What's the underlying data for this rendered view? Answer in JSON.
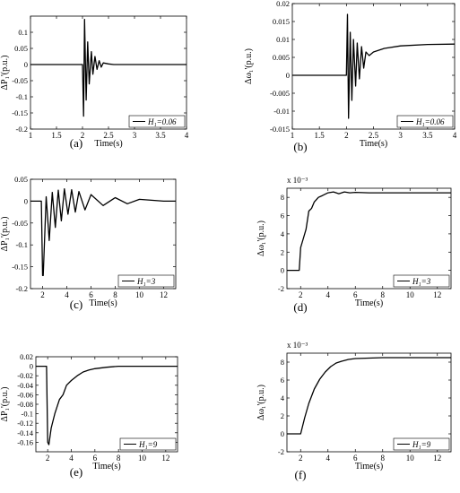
{
  "chart_data": [
    {
      "id": "a",
      "type": "line",
      "caption": "(a)",
      "xlabel": "Time(s)",
      "ylabel": "ΔP₁'(p.u.)",
      "xlim": [
        1,
        4
      ],
      "ylim": [
        -0.2,
        0.15
      ],
      "xticks": [
        "1",
        "1.5",
        "2",
        "2.5",
        "3",
        "3.5",
        "4"
      ],
      "xtick_values": [
        1,
        1.5,
        2,
        2.5,
        3,
        3.5,
        4
      ],
      "yticks": [
        "-0.2",
        "-0.15",
        "-0.1",
        "-0.05",
        "0",
        "0.05",
        "0.1"
      ],
      "ytick_values": [
        -0.2,
        -0.15,
        -0.1,
        -0.05,
        0,
        0.05,
        0.1
      ],
      "legend": "H₁=0.06",
      "legend_position": "bottom-right",
      "series": [
        {
          "x": [
            1,
            1.5,
            2.0,
            2.02,
            2.04,
            2.07,
            2.1,
            2.13,
            2.17,
            2.2,
            2.24,
            2.28,
            2.32,
            2.36,
            2.4,
            2.5,
            2.6,
            3,
            3.5,
            4
          ],
          "y": [
            0,
            0,
            0,
            -0.16,
            0.14,
            -0.11,
            0.07,
            -0.06,
            0.04,
            -0.03,
            0.025,
            -0.015,
            0.012,
            -0.008,
            0.005,
            0.002,
            0,
            0,
            0,
            0
          ]
        }
      ]
    },
    {
      "id": "b",
      "type": "line",
      "caption": "(b)",
      "xlabel": "Time(s)",
      "ylabel": "Δω₁'(p.u.)",
      "xlim": [
        1,
        4
      ],
      "ylim": [
        -0.015,
        0.02
      ],
      "xticks": [
        "1",
        "1.5",
        "2",
        "2.5",
        "3",
        "3.5",
        "4"
      ],
      "xtick_values": [
        1,
        1.5,
        2,
        2.5,
        3,
        3.5,
        4
      ],
      "yticks": [
        "-0.015",
        "-0.01",
        "-0.005",
        "0",
        "0.005",
        "0.01",
        "0.015",
        "0.02"
      ],
      "ytick_values": [
        -0.015,
        -0.01,
        -0.005,
        0,
        0.005,
        0.01,
        0.015,
        0.02
      ],
      "legend": "H₁=0.06",
      "legend_position": "bottom-right",
      "series": [
        {
          "x": [
            1,
            1.5,
            2.0,
            2.02,
            2.04,
            2.07,
            2.1,
            2.13,
            2.17,
            2.2,
            2.24,
            2.28,
            2.32,
            2.36,
            2.42,
            2.5,
            2.7,
            3,
            3.5,
            4
          ],
          "y": [
            0,
            0,
            0,
            0.017,
            -0.012,
            0.012,
            -0.007,
            0.01,
            -0.003,
            0.009,
            -0.001,
            0.008,
            0.002,
            0.0065,
            0.0055,
            0.0065,
            0.0075,
            0.0082,
            0.0086,
            0.0087
          ]
        }
      ]
    },
    {
      "id": "c",
      "type": "line",
      "caption": "(c)",
      "xlabel": "Time(s)",
      "ylabel": "ΔP₁'(p.u.)",
      "xlim": [
        1,
        13
      ],
      "ylim": [
        -0.2,
        0.05
      ],
      "xticks": [
        "2",
        "4",
        "6",
        "8",
        "10",
        "12"
      ],
      "xtick_values": [
        2,
        4,
        6,
        8,
        10,
        12
      ],
      "yticks": [
        "-0.2",
        "-0.15",
        "-0.1",
        "-0.05",
        "0",
        "0.05"
      ],
      "ytick_values": [
        -0.2,
        -0.15,
        -0.1,
        -0.05,
        0,
        0.05
      ],
      "legend": "H₁=3",
      "legend_position": "bottom-right",
      "series": [
        {
          "x": [
            1,
            1.9,
            2.0,
            2.05,
            2.3,
            2.55,
            2.8,
            3.05,
            3.3,
            3.55,
            3.8,
            4.1,
            4.4,
            4.7,
            5.0,
            5.5,
            6,
            7,
            8,
            9,
            10,
            11,
            12,
            13
          ],
          "y": [
            0,
            0,
            -0.17,
            -0.17,
            0.01,
            -0.09,
            0.02,
            -0.06,
            0.025,
            -0.045,
            0.028,
            -0.03,
            0.026,
            -0.025,
            0.022,
            -0.02,
            0.015,
            -0.01,
            0.008,
            -0.006,
            0.004,
            0.002,
            0,
            0
          ]
        }
      ]
    },
    {
      "id": "d",
      "type": "line",
      "caption": "(d)",
      "xlabel": "Time(s)",
      "ylabel": "Δω₁'(p.u.)",
      "exponent": "x 10⁻³",
      "xlim": [
        1,
        13
      ],
      "ylim": [
        -2,
        9
      ],
      "xticks": [
        "2",
        "4",
        "6",
        "8",
        "10",
        "12"
      ],
      "xtick_values": [
        2,
        4,
        6,
        8,
        10,
        12
      ],
      "yticks": [
        "-2",
        "0",
        "2",
        "4",
        "6",
        "8"
      ],
      "ytick_values": [
        -2,
        0,
        2,
        4,
        6,
        8
      ],
      "legend": "H₁=3",
      "legend_position": "bottom-right",
      "series": [
        {
          "x": [
            1,
            1.9,
            2.0,
            2.2,
            2.4,
            2.6,
            2.8,
            3.0,
            3.3,
            3.6,
            4.0,
            4.4,
            4.8,
            5.2,
            5.6,
            6.0,
            7,
            8,
            9,
            10,
            11,
            12,
            13
          ],
          "y": [
            0,
            0,
            2.5,
            3.5,
            4.5,
            6.5,
            6.8,
            7.5,
            8.0,
            8.2,
            8.5,
            8.6,
            8.4,
            8.6,
            8.5,
            8.55,
            8.5,
            8.5,
            8.5,
            8.5,
            8.5,
            8.5,
            8.5
          ]
        }
      ]
    },
    {
      "id": "e",
      "type": "line",
      "caption": "(e)",
      "xlabel": "Time(s)",
      "ylabel": "ΔP₁'(p.u.)",
      "xlim": [
        1,
        13
      ],
      "ylim": [
        -0.18,
        0.02
      ],
      "xticks": [
        "2",
        "4",
        "6",
        "8",
        "10",
        "12"
      ],
      "xtick_values": [
        2,
        4,
        6,
        8,
        10,
        12
      ],
      "yticks": [
        "-0.16",
        "-0.14",
        "-0.12",
        "-0.1",
        "-0.08",
        "-0.06",
        "-0.04",
        "-0.02",
        "0",
        "0.02"
      ],
      "ytick_values": [
        -0.16,
        -0.14,
        -0.12,
        -0.1,
        -0.08,
        -0.06,
        -0.04,
        -0.02,
        0,
        0.02
      ],
      "legend": "H₁=9",
      "legend_position": "bottom-right",
      "series": [
        {
          "x": [
            1,
            1.9,
            2.0,
            2.1,
            2.3,
            2.6,
            3.0,
            3.3,
            3.6,
            4.0,
            4.5,
            5.0,
            5.5,
            6.0,
            7,
            8,
            10,
            13
          ],
          "y": [
            0,
            0,
            -0.16,
            -0.165,
            -0.13,
            -0.1,
            -0.07,
            -0.06,
            -0.04,
            -0.03,
            -0.02,
            -0.012,
            -0.008,
            -0.005,
            -0.002,
            0,
            0,
            0
          ]
        }
      ]
    },
    {
      "id": "f",
      "type": "line",
      "caption": "(f)",
      "xlabel": "Time(s)",
      "ylabel": "Δω₁'(p.u.)",
      "exponent": "x 10⁻³",
      "xlim": [
        1,
        13
      ],
      "ylim": [
        -2,
        9
      ],
      "xticks": [
        "2",
        "4",
        "6",
        "8",
        "10",
        "12"
      ],
      "xtick_values": [
        2,
        4,
        6,
        8,
        10,
        12
      ],
      "yticks": [
        "-2",
        "0",
        "2",
        "4",
        "6",
        "8"
      ],
      "ytick_values": [
        -2,
        0,
        2,
        4,
        6,
        8
      ],
      "legend": "H₁=9",
      "legend_position": "bottom-right",
      "series": [
        {
          "x": [
            1,
            1.9,
            2.0,
            2.3,
            2.6,
            3.0,
            3.4,
            3.8,
            4.2,
            4.6,
            5.0,
            5.5,
            6.0,
            7,
            8,
            10,
            13
          ],
          "y": [
            0,
            0,
            0,
            1.8,
            3.4,
            5.0,
            6.1,
            6.9,
            7.5,
            7.9,
            8.1,
            8.3,
            8.4,
            8.45,
            8.5,
            8.5,
            8.5
          ]
        }
      ]
    }
  ]
}
